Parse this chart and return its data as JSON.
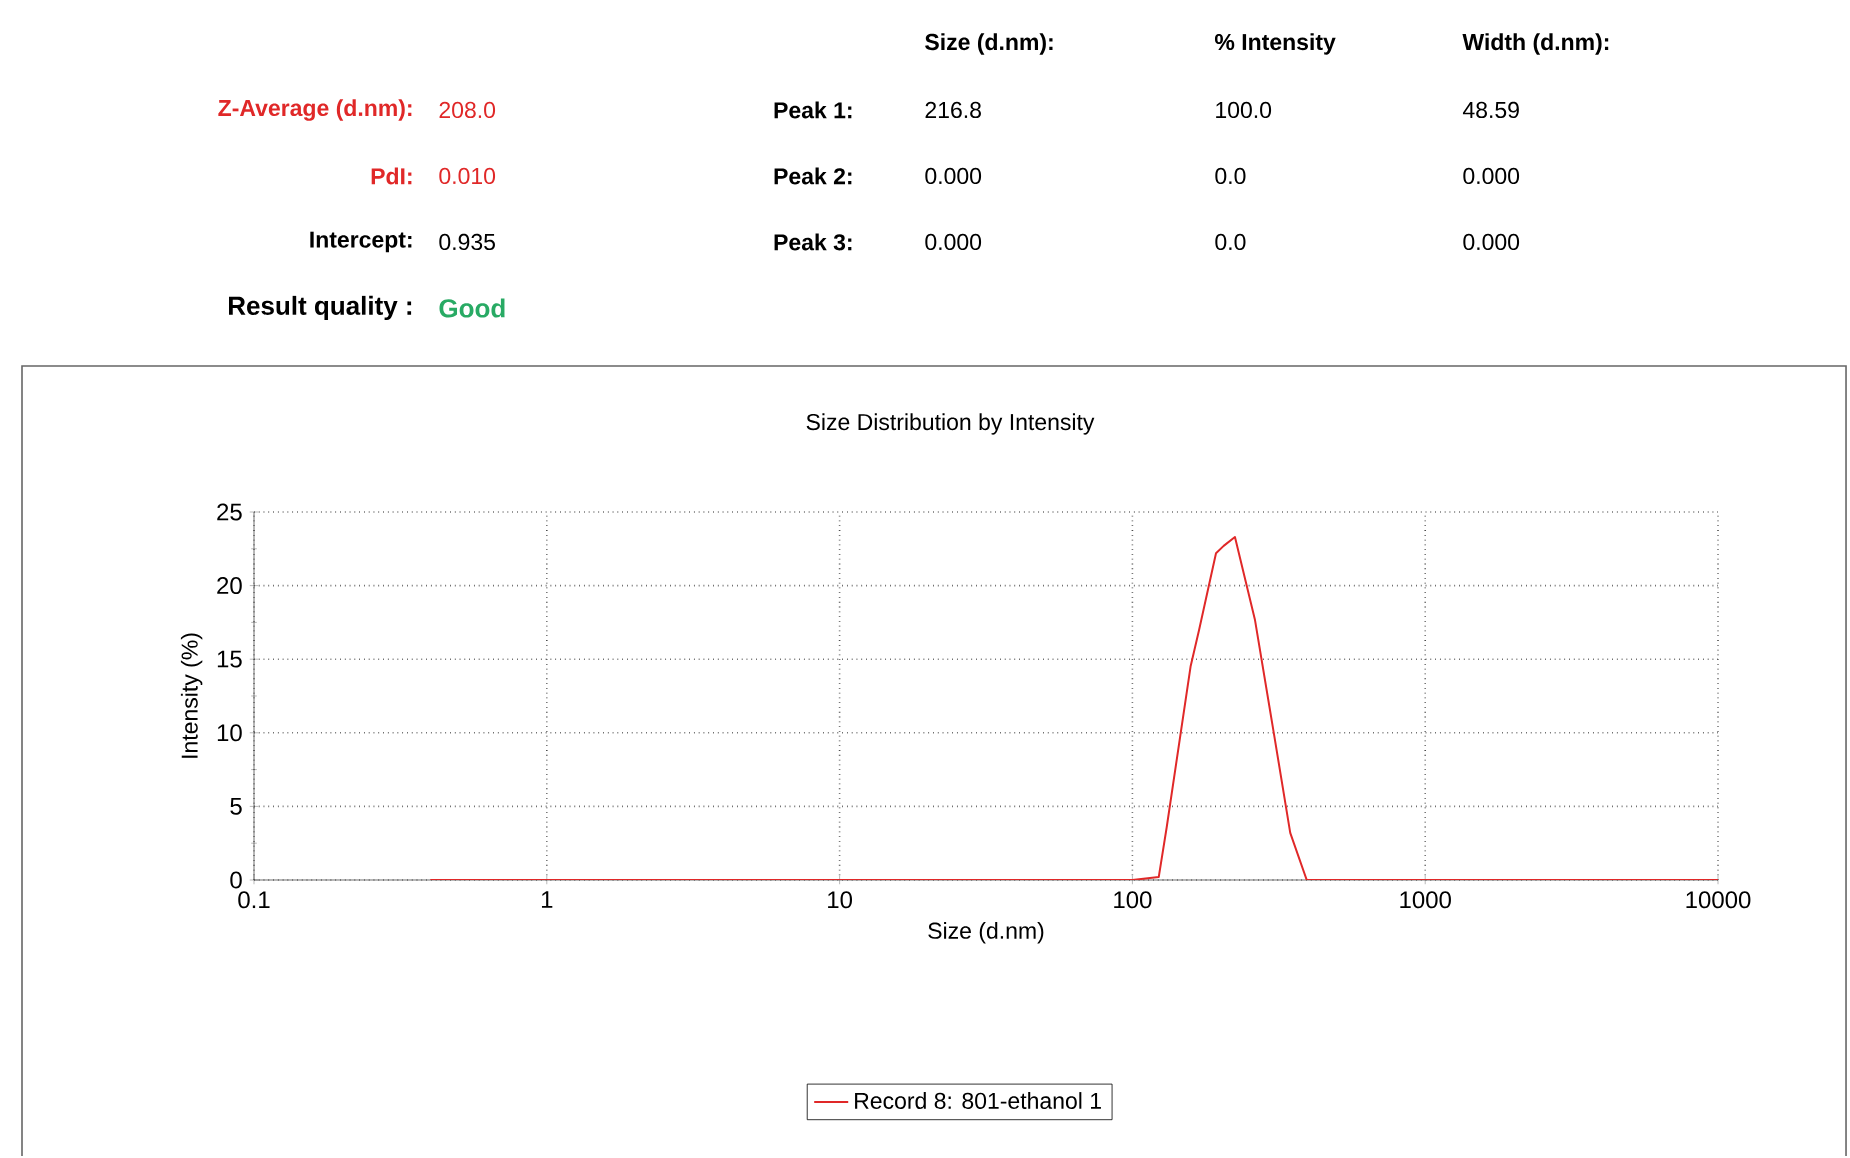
{
  "chart_data": {
    "type": "line",
    "title": "Size Distribution by Intensity",
    "xlabel": "Size (d.nm)",
    "ylabel": "Intensity (%)",
    "x": [
      0.4,
      1,
      10,
      100,
      123,
      131,
      158,
      169,
      193,
      205,
      224,
      262,
      304,
      346,
      394,
      1000,
      10000
    ],
    "series": [
      {
        "name": "Record 8: 801-ethanol 1",
        "color": "#e02828",
        "values": [
          0,
          0,
          0,
          0,
          0.2,
          3.6,
          14.5,
          17,
          22.2,
          22.7,
          23.3,
          17.7,
          10,
          3.2,
          0,
          0,
          0
        ]
      }
    ],
    "log": "x",
    "xlim": [
      0.1,
      10000
    ],
    "xticks": [
      0.1,
      1,
      10,
      100,
      1000,
      10000
    ],
    "ylim": [
      0,
      25
    ],
    "yticks": [
      0,
      5,
      10,
      15,
      20,
      25
    ],
    "grid": true,
    "legend": "bottom",
    "line_style": "solid",
    "marker": "none",
    "annotations": [
      "Z-Average (d.nm):",
      "208.0",
      "PdI:",
      "0.010",
      "Intercept:",
      "0.935",
      "Result quality :",
      "Good",
      "Size (d.nm):",
      "% Intensity",
      "Width (d.nm):",
      "Peak 1:",
      "216.8",
      "100.0",
      "48.59",
      "Peak 2:",
      "0.000",
      "0.0",
      "0.000",
      "Peak 3:",
      "0.000",
      "0.0",
      "0.000"
    ]
  }
}
